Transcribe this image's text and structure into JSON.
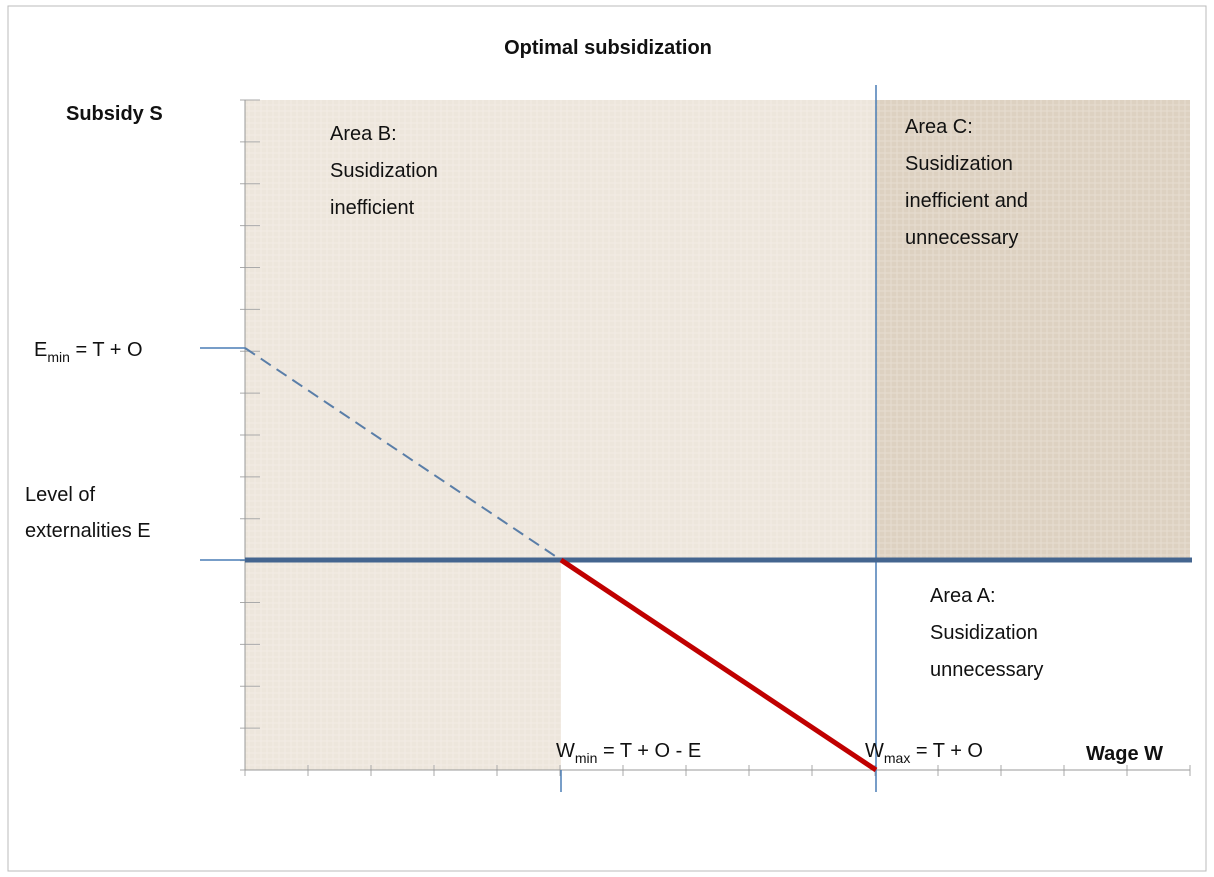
{
  "title": "Optimal subsidization",
  "y_axis_label": "Subsidy S",
  "x_axis_label": "Wage W",
  "emin_label": {
    "main": "E",
    "sub": "min",
    "rest": " = T + O"
  },
  "externalities_label": [
    "Level of",
    "externalities E"
  ],
  "wmin_label": {
    "main": "W",
    "sub": "min",
    "rest": " = T + O - E"
  },
  "wmax_label": {
    "main": "W",
    "sub": "max",
    "rest": " = T + O"
  },
  "areas": [
    {
      "lines": [
        "Area B:",
        "Susidization",
        "inefficient"
      ]
    },
    {
      "lines": [
        "Area C:",
        "Susidization",
        "inefficient and",
        "unnecessary"
      ]
    },
    {
      "lines": [
        "Area A:",
        "Susidization",
        "unnecessary"
      ]
    }
  ]
}
